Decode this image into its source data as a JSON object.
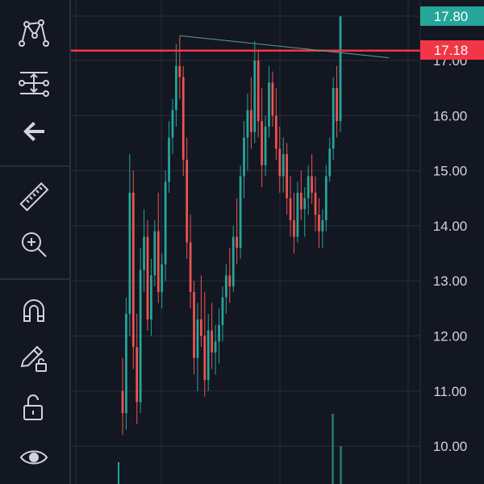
{
  "toolbar": {
    "tools": [
      {
        "name": "pattern-tool-icon"
      },
      {
        "name": "long-position-tool-icon"
      },
      {
        "name": "back-arrow-icon"
      },
      {
        "name": "ruler-measure-icon"
      },
      {
        "name": "zoom-in-icon"
      },
      {
        "name": "magnet-icon"
      },
      {
        "name": "lock-drawing-pencil-icon"
      },
      {
        "name": "lock-all-drawings-icon"
      },
      {
        "name": "eye-visibility-icon"
      }
    ]
  },
  "colors": {
    "background": "#131722",
    "grid": "#2a2e39",
    "up": "#26a69a",
    "down": "#ef5350",
    "horizontal_line": "#f23645",
    "trend_line": "#5d9e8a",
    "axis_text": "#d1d4dc"
  },
  "price_axis": {
    "labels": [
      "10.00",
      "11.00",
      "12.00",
      "13.00",
      "14.00",
      "15.00",
      "16.00",
      "17.00"
    ]
  },
  "last_price": {
    "label": "17.80",
    "color": "#26a69a"
  },
  "horizontal_line_price": {
    "label": "17.18",
    "color": "#f23645"
  },
  "chart_data": {
    "type": "candlestick",
    "ylim": [
      9.4,
      18.1
    ],
    "grid": true,
    "price_ticks": [
      10,
      11,
      12,
      13,
      14,
      15,
      16,
      17
    ],
    "horizontal_line": 17.18,
    "last_price": 17.8,
    "trend_line": {
      "from_index": 16,
      "from_price": 17.45,
      "to_index": 118,
      "to_price": 17.05
    },
    "candles": [
      [
        11.0,
        11.6,
        10.2,
        10.6
      ],
      [
        10.6,
        12.7,
        10.3,
        12.4
      ],
      [
        12.4,
        15.3,
        12.0,
        14.6
      ],
      [
        14.6,
        15.0,
        11.4,
        11.8
      ],
      [
        11.8,
        12.4,
        10.4,
        10.8
      ],
      [
        10.8,
        13.6,
        10.6,
        13.2
      ],
      [
        13.2,
        14.3,
        12.8,
        13.8
      ],
      [
        13.8,
        14.1,
        12.1,
        12.3
      ],
      [
        12.3,
        13.4,
        12.0,
        13.1
      ],
      [
        13.1,
        14.1,
        12.9,
        13.9
      ],
      [
        13.9,
        14.6,
        12.6,
        12.8
      ],
      [
        12.8,
        13.5,
        12.5,
        13.3
      ],
      [
        13.3,
        15.0,
        13.0,
        14.8
      ],
      [
        14.8,
        15.9,
        14.6,
        15.6
      ],
      [
        15.6,
        16.3,
        15.3,
        16.1
      ],
      [
        16.1,
        17.3,
        15.8,
        16.9
      ],
      [
        16.9,
        17.45,
        16.3,
        16.7
      ],
      [
        16.7,
        16.9,
        14.9,
        15.2
      ],
      [
        15.2,
        15.6,
        13.4,
        13.7
      ],
      [
        13.7,
        14.2,
        12.5,
        12.8
      ],
      [
        12.8,
        13.0,
        11.3,
        11.6
      ],
      [
        11.6,
        12.6,
        11.0,
        12.3
      ],
      [
        12.3,
        13.1,
        11.8,
        12.0
      ],
      [
        12.0,
        12.8,
        10.9,
        11.2
      ],
      [
        11.2,
        12.4,
        11.0,
        12.1
      ],
      [
        12.1,
        12.6,
        11.4,
        11.7
      ],
      [
        11.7,
        12.2,
        11.3,
        11.9
      ],
      [
        11.9,
        12.5,
        11.5,
        12.2
      ],
      [
        12.2,
        12.9,
        11.9,
        12.7
      ],
      [
        12.7,
        13.3,
        12.4,
        13.1
      ],
      [
        13.1,
        13.6,
        12.6,
        12.9
      ],
      [
        12.9,
        14.0,
        12.8,
        13.8
      ],
      [
        13.8,
        14.5,
        13.3,
        13.6
      ],
      [
        13.6,
        15.1,
        13.4,
        14.9
      ],
      [
        14.9,
        15.9,
        14.5,
        15.6
      ],
      [
        15.6,
        16.4,
        15.0,
        16.1
      ],
      [
        16.1,
        16.7,
        15.4,
        15.7
      ],
      [
        15.7,
        17.35,
        15.5,
        17.0
      ],
      [
        17.0,
        17.2,
        15.6,
        15.9
      ],
      [
        15.9,
        16.5,
        14.7,
        15.1
      ],
      [
        15.1,
        16.0,
        14.9,
        15.8
      ],
      [
        15.8,
        16.9,
        15.6,
        16.6
      ],
      [
        16.6,
        16.8,
        15.8,
        16.0
      ],
      [
        16.0,
        16.5,
        15.2,
        15.4
      ],
      [
        15.4,
        15.8,
        14.6,
        14.9
      ],
      [
        14.9,
        15.6,
        14.6,
        15.3
      ],
      [
        15.3,
        15.5,
        14.2,
        14.5
      ],
      [
        14.5,
        14.9,
        13.8,
        14.1
      ],
      [
        14.1,
        14.6,
        13.5,
        13.8
      ],
      [
        13.8,
        14.8,
        13.7,
        14.6
      ],
      [
        14.6,
        15.0,
        14.1,
        14.3
      ],
      [
        14.3,
        14.7,
        13.8,
        14.5
      ],
      [
        14.5,
        15.1,
        14.2,
        14.9
      ],
      [
        14.9,
        15.3,
        14.4,
        14.6
      ],
      [
        14.6,
        14.9,
        13.9,
        14.2
      ],
      [
        14.2,
        14.5,
        13.6,
        13.9
      ],
      [
        13.9,
        14.3,
        13.6,
        14.1
      ],
      [
        14.1,
        15.1,
        13.9,
        14.9
      ],
      [
        14.9,
        15.6,
        14.8,
        15.4
      ],
      [
        15.4,
        16.7,
        15.2,
        16.5
      ],
      [
        16.5,
        16.9,
        15.6,
        15.9
      ],
      [
        15.9,
        17.8,
        15.7,
        17.8
      ]
    ]
  }
}
